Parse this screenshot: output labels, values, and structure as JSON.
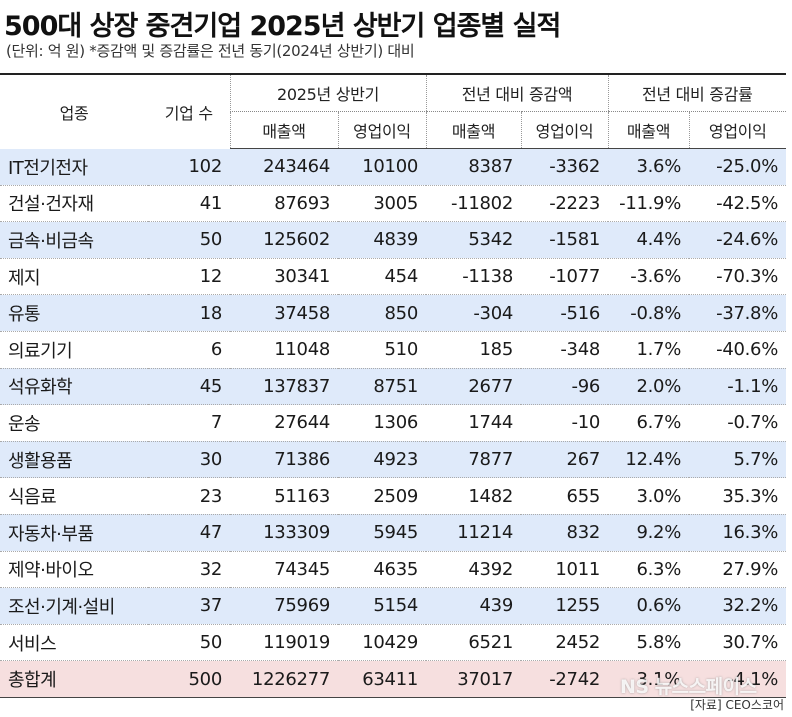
{
  "title": "500대 상장 중견기업 2025년 상반기 업종별 실적",
  "subtitle": "(단위: 억 원)  *증감액 및 증감률은 전년 동기(2024년 상반기) 대비",
  "header": {
    "industry": "업종",
    "company_count": "기업 수",
    "group_2025": "2025년 상반기",
    "group_change_amount": "전년 대비 증감액",
    "group_change_rate": "전년 대비 증감률",
    "sales": "매출액",
    "operating_profit": "영업이익"
  },
  "rows": [
    {
      "industry": "IT전기전자",
      "count": "102",
      "sales": "243464",
      "op": "10100",
      "sales_chg": "8387",
      "op_chg": "-3362",
      "sales_rate": "3.6%",
      "op_rate": "-25.0%"
    },
    {
      "industry": "건설·건자재",
      "count": "41",
      "sales": "87693",
      "op": "3005",
      "sales_chg": "-11802",
      "op_chg": "-2223",
      "sales_rate": "-11.9%",
      "op_rate": "-42.5%"
    },
    {
      "industry": "금속·비금속",
      "count": "50",
      "sales": "125602",
      "op": "4839",
      "sales_chg": "5342",
      "op_chg": "-1581",
      "sales_rate": "4.4%",
      "op_rate": "-24.6%"
    },
    {
      "industry": "제지",
      "count": "12",
      "sales": "30341",
      "op": "454",
      "sales_chg": "-1138",
      "op_chg": "-1077",
      "sales_rate": "-3.6%",
      "op_rate": "-70.3%"
    },
    {
      "industry": "유통",
      "count": "18",
      "sales": "37458",
      "op": "850",
      "sales_chg": "-304",
      "op_chg": "-516",
      "sales_rate": "-0.8%",
      "op_rate": "-37.8%"
    },
    {
      "industry": "의료기기",
      "count": "6",
      "sales": "11048",
      "op": "510",
      "sales_chg": "185",
      "op_chg": "-348",
      "sales_rate": "1.7%",
      "op_rate": "-40.6%"
    },
    {
      "industry": "석유화학",
      "count": "45",
      "sales": "137837",
      "op": "8751",
      "sales_chg": "2677",
      "op_chg": "-96",
      "sales_rate": "2.0%",
      "op_rate": "-1.1%"
    },
    {
      "industry": "운송",
      "count": "7",
      "sales": "27644",
      "op": "1306",
      "sales_chg": "1744",
      "op_chg": "-10",
      "sales_rate": "6.7%",
      "op_rate": "-0.7%"
    },
    {
      "industry": "생활용품",
      "count": "30",
      "sales": "71386",
      "op": "4923",
      "sales_chg": "7877",
      "op_chg": "267",
      "sales_rate": "12.4%",
      "op_rate": "5.7%"
    },
    {
      "industry": "식음료",
      "count": "23",
      "sales": "51163",
      "op": "2509",
      "sales_chg": "1482",
      "op_chg": "655",
      "sales_rate": "3.0%",
      "op_rate": "35.3%"
    },
    {
      "industry": "자동차·부품",
      "count": "47",
      "sales": "133309",
      "op": "5945",
      "sales_chg": "11214",
      "op_chg": "832",
      "sales_rate": "9.2%",
      "op_rate": "16.3%"
    },
    {
      "industry": "제약·바이오",
      "count": "32",
      "sales": "74345",
      "op": "4635",
      "sales_chg": "4392",
      "op_chg": "1011",
      "sales_rate": "6.3%",
      "op_rate": "27.9%"
    },
    {
      "industry": "조선·기계·설비",
      "count": "37",
      "sales": "75969",
      "op": "5154",
      "sales_chg": "439",
      "op_chg": "1255",
      "sales_rate": "0.6%",
      "op_rate": "32.2%"
    },
    {
      "industry": "서비스",
      "count": "50",
      "sales": "119019",
      "op": "10429",
      "sales_chg": "6521",
      "op_chg": "2452",
      "sales_rate": "5.8%",
      "op_rate": "30.7%"
    },
    {
      "industry": "총합계",
      "count": "500",
      "sales": "1226277",
      "op": "63411",
      "sales_chg": "37017",
      "op_chg": "-2742",
      "sales_rate": "3.1%",
      "op_rate": "-4.1%"
    }
  ],
  "source": "[자료] CEO스코어",
  "watermark": "NS 뉴스스페이스",
  "colors": {
    "shade_row": "#dfeafa",
    "total_row": "#f6dfdf"
  }
}
